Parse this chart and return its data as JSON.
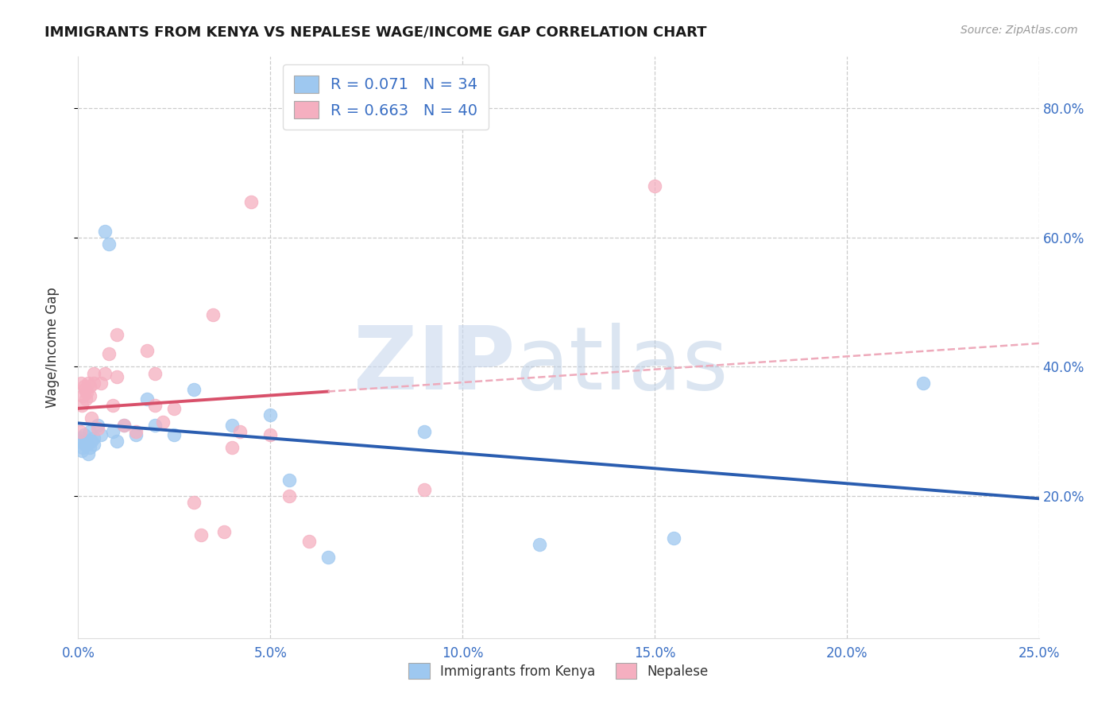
{
  "title": "IMMIGRANTS FROM KENYA VS NEPALESE WAGE/INCOME GAP CORRELATION CHART",
  "source": "Source: ZipAtlas.com",
  "ylabel_label": "Wage/Income Gap",
  "xlim": [
    0.0,
    0.25
  ],
  "ylim": [
    -0.02,
    0.88
  ],
  "xtick_labels": [
    "0.0%",
    "5.0%",
    "10.0%",
    "15.0%",
    "20.0%",
    "25.0%"
  ],
  "xtick_vals": [
    0.0,
    0.05,
    0.1,
    0.15,
    0.2,
    0.25
  ],
  "ytick_labels": [
    "20.0%",
    "40.0%",
    "60.0%",
    "80.0%"
  ],
  "ytick_vals": [
    0.2,
    0.4,
    0.6,
    0.8
  ],
  "legend_r1": "R = 0.071",
  "legend_n1": "N = 34",
  "legend_r2": "R = 0.663",
  "legend_n2": "N = 40",
  "color_kenya": "#9ec8f0",
  "color_nepalese": "#f5afc0",
  "color_kenya_line": "#2a5db0",
  "color_nepalese_line": "#d8506a",
  "color_nepalese_dashed": "#eeaabb",
  "kenya_x": [
    0.0005,
    0.0008,
    0.001,
    0.0012,
    0.0015,
    0.0018,
    0.002,
    0.0022,
    0.0025,
    0.003,
    0.003,
    0.0035,
    0.004,
    0.004,
    0.005,
    0.006,
    0.007,
    0.008,
    0.009,
    0.01,
    0.012,
    0.015,
    0.018,
    0.02,
    0.025,
    0.03,
    0.04,
    0.05,
    0.055,
    0.065,
    0.09,
    0.12,
    0.155,
    0.22
  ],
  "kenya_y": [
    0.285,
    0.29,
    0.27,
    0.275,
    0.295,
    0.28,
    0.285,
    0.28,
    0.265,
    0.3,
    0.275,
    0.285,
    0.29,
    0.28,
    0.31,
    0.295,
    0.61,
    0.59,
    0.3,
    0.285,
    0.31,
    0.295,
    0.35,
    0.31,
    0.295,
    0.365,
    0.31,
    0.325,
    0.225,
    0.105,
    0.3,
    0.125,
    0.135,
    0.375
  ],
  "nepalese_x": [
    0.0005,
    0.0008,
    0.001,
    0.0012,
    0.0015,
    0.0018,
    0.002,
    0.0022,
    0.0025,
    0.003,
    0.003,
    0.0035,
    0.004,
    0.004,
    0.005,
    0.006,
    0.007,
    0.008,
    0.009,
    0.01,
    0.01,
    0.012,
    0.015,
    0.018,
    0.02,
    0.02,
    0.022,
    0.025,
    0.03,
    0.032,
    0.035,
    0.038,
    0.04,
    0.042,
    0.045,
    0.05,
    0.055,
    0.06,
    0.09,
    0.15
  ],
  "nepalese_y": [
    0.3,
    0.375,
    0.34,
    0.355,
    0.37,
    0.365,
    0.35,
    0.36,
    0.375,
    0.37,
    0.355,
    0.32,
    0.39,
    0.375,
    0.305,
    0.375,
    0.39,
    0.42,
    0.34,
    0.385,
    0.45,
    0.31,
    0.3,
    0.425,
    0.34,
    0.39,
    0.315,
    0.335,
    0.19,
    0.14,
    0.48,
    0.145,
    0.275,
    0.3,
    0.655,
    0.295,
    0.2,
    0.13,
    0.21,
    0.68
  ]
}
